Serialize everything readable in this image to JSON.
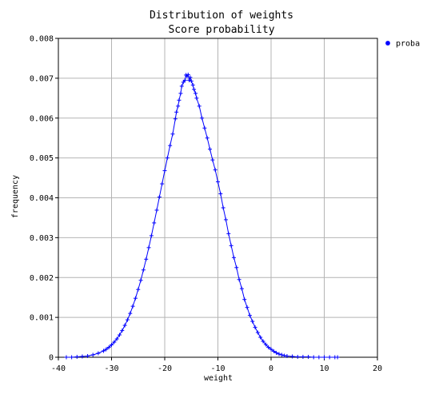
{
  "chart_data": {
    "type": "scatter",
    "title": "Distribution of weights",
    "subtitle": "Score probability",
    "xlabel": "weight",
    "ylabel": "frequency",
    "xlim": [
      -40,
      20
    ],
    "ylim": [
      0,
      0.008
    ],
    "x_ticks": [
      "-40",
      "-30",
      "-20",
      "-10",
      "0",
      "10",
      "20"
    ],
    "y_ticks": [
      "0",
      "0.001",
      "0.002",
      "0.003",
      "0.004",
      "0.005",
      "0.006",
      "0.007",
      "0.008"
    ],
    "grid": true,
    "legend_position": "top-right",
    "series": [
      {
        "name": "proba",
        "color": "#0000ff",
        "marker": "plus",
        "line": true,
        "points": [
          [
            -38.5,
            0.0
          ],
          [
            -37.5,
            0.0
          ],
          [
            -36.5,
            1e-05
          ],
          [
            -35.5,
            2e-05
          ],
          [
            -34.5,
            3e-05
          ],
          [
            -33.5,
            6e-05
          ],
          [
            -32.5,
            0.0001
          ],
          [
            -31.5,
            0.00016
          ],
          [
            -31.0,
            0.0002
          ],
          [
            -30.5,
            0.00025
          ],
          [
            -30.0,
            0.00031
          ],
          [
            -29.5,
            0.00038
          ],
          [
            -29.0,
            0.00046
          ],
          [
            -28.5,
            0.00056
          ],
          [
            -28.0,
            0.00067
          ],
          [
            -27.5,
            0.0008
          ],
          [
            -27.0,
            0.00094
          ],
          [
            -26.5,
            0.0011
          ],
          [
            -26.0,
            0.00128
          ],
          [
            -25.5,
            0.00148
          ],
          [
            -25.0,
            0.0017
          ],
          [
            -24.5,
            0.00193
          ],
          [
            -24.0,
            0.00219
          ],
          [
            -23.5,
            0.00246
          ],
          [
            -23.0,
            0.00275
          ],
          [
            -22.5,
            0.00305
          ],
          [
            -22.0,
            0.00337
          ],
          [
            -21.5,
            0.00369
          ],
          [
            -21.0,
            0.00402
          ],
          [
            -20.5,
            0.00435
          ],
          [
            -20.0,
            0.00468
          ],
          [
            -19.5,
            0.005
          ],
          [
            -19.0,
            0.00531
          ],
          [
            -18.5,
            0.0056
          ],
          [
            -18.0,
            0.00598
          ],
          [
            -17.8,
            0.00615
          ],
          [
            -17.5,
            0.0063
          ],
          [
            -17.3,
            0.00645
          ],
          [
            -17.0,
            0.00662
          ],
          [
            -16.8,
            0.0068
          ],
          [
            -16.5,
            0.0069
          ],
          [
            -16.2,
            0.00695
          ],
          [
            -16.0,
            0.00708
          ],
          [
            -15.8,
            0.00705
          ],
          [
            -15.6,
            0.00709
          ],
          [
            -15.4,
            0.00695
          ],
          [
            -15.2,
            0.00702
          ],
          [
            -15.0,
            0.00693
          ],
          [
            -14.7,
            0.00683
          ],
          [
            -14.5,
            0.00672
          ],
          [
            -14.2,
            0.00662
          ],
          [
            -14.0,
            0.0065
          ],
          [
            -13.5,
            0.0063
          ],
          [
            -13.0,
            0.006
          ],
          [
            -12.5,
            0.00575
          ],
          [
            -12.0,
            0.0055
          ],
          [
            -11.5,
            0.00522
          ],
          [
            -11.0,
            0.00495
          ],
          [
            -10.5,
            0.0047
          ],
          [
            -10.0,
            0.0044
          ],
          [
            -9.5,
            0.0041
          ],
          [
            -9.0,
            0.00375
          ],
          [
            -8.5,
            0.00345
          ],
          [
            -8.0,
            0.0031
          ],
          [
            -7.5,
            0.0028
          ],
          [
            -7.0,
            0.0025
          ],
          [
            -6.5,
            0.00225
          ],
          [
            -6.0,
            0.00195
          ],
          [
            -5.5,
            0.00172
          ],
          [
            -5.0,
            0.00145
          ],
          [
            -4.5,
            0.00125
          ],
          [
            -4.0,
            0.00105
          ],
          [
            -3.5,
            0.0009
          ],
          [
            -3.0,
            0.00075
          ],
          [
            -2.5,
            0.00062
          ],
          [
            -2.0,
            0.0005
          ],
          [
            -1.5,
            0.0004
          ],
          [
            -1.0,
            0.00032
          ],
          [
            -0.5,
            0.00025
          ],
          [
            0.0,
            0.0002
          ],
          [
            0.5,
            0.00015
          ],
          [
            1.0,
            0.00011
          ],
          [
            1.5,
            8e-05
          ],
          [
            2.0,
            6e-05
          ],
          [
            2.5,
            4e-05
          ],
          [
            3.0,
            3e-05
          ],
          [
            4.0,
            2e-05
          ],
          [
            5.0,
            1e-05
          ],
          [
            6.0,
            1e-05
          ],
          [
            7.0,
            1e-05
          ],
          [
            8.0,
            0.0
          ],
          [
            9.0,
            0.0
          ],
          [
            10.0,
            0.0
          ],
          [
            11.0,
            0.0
          ],
          [
            12.0,
            0.0
          ],
          [
            12.5,
            0.0
          ]
        ]
      }
    ]
  }
}
